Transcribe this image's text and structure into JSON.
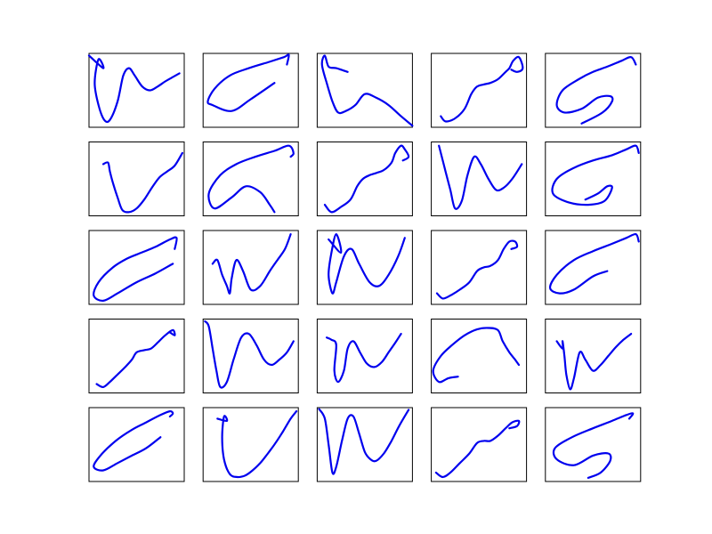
{
  "figure": {
    "background": "#ffffff"
  },
  "chart_data": {
    "type": "line",
    "layout": {
      "rows": 5,
      "cols": 5
    },
    "axes_ticks_visible": false,
    "line_color": "#0000ee",
    "xlim": [
      0,
      1
    ],
    "ylim": [
      0,
      1
    ],
    "panels": [
      {
        "x": [
          0.0,
          0.15,
          0.1,
          0.06,
          0.1,
          0.16,
          0.22,
          0.3,
          0.36,
          0.42,
          0.48,
          0.56,
          0.64,
          0.72,
          0.8,
          0.88,
          0.95
        ],
        "y": [
          0.97,
          0.8,
          0.92,
          0.6,
          0.3,
          0.1,
          0.1,
          0.35,
          0.7,
          0.8,
          0.7,
          0.55,
          0.5,
          0.55,
          0.62,
          0.68,
          0.73
        ]
      },
      {
        "x": [
          0.75,
          0.5,
          0.3,
          0.1,
          0.05,
          0.12,
          0.28,
          0.48,
          0.68,
          0.85,
          0.9,
          0.88
        ],
        "y": [
          0.6,
          0.38,
          0.22,
          0.3,
          0.35,
          0.52,
          0.7,
          0.8,
          0.88,
          0.95,
          0.98,
          0.85
        ]
      },
      {
        "x": [
          0.32,
          0.2,
          0.12,
          0.08,
          0.05,
          0.1,
          0.16,
          0.22,
          0.3,
          0.4,
          0.5,
          0.62,
          0.75,
          0.88,
          1.0
        ],
        "y": [
          0.75,
          0.8,
          0.82,
          0.97,
          0.85,
          0.6,
          0.35,
          0.2,
          0.22,
          0.3,
          0.45,
          0.4,
          0.3,
          0.15,
          0.02
        ]
      },
      {
        "x": [
          0.1,
          0.15,
          0.25,
          0.35,
          0.42,
          0.48,
          0.55,
          0.62,
          0.7,
          0.78,
          0.82,
          0.86,
          0.92,
          0.96,
          0.9,
          0.84
        ],
        "y": [
          0.15,
          0.08,
          0.12,
          0.25,
          0.45,
          0.55,
          0.58,
          0.6,
          0.65,
          0.75,
          0.8,
          0.9,
          0.95,
          0.8,
          0.75,
          0.78
        ]
      },
      {
        "x": [
          0.38,
          0.6,
          0.7,
          0.68,
          0.55,
          0.38,
          0.2,
          0.12,
          0.18,
          0.35,
          0.5,
          0.65,
          0.8,
          0.9,
          0.95
        ],
        "y": [
          0.05,
          0.2,
          0.35,
          0.42,
          0.4,
          0.25,
          0.2,
          0.3,
          0.5,
          0.65,
          0.75,
          0.82,
          0.9,
          0.95,
          0.85
        ]
      },
      {
        "x": [
          0.15,
          0.2,
          0.22,
          0.25,
          0.3,
          0.35,
          0.42,
          0.5,
          0.58,
          0.66,
          0.74,
          0.82,
          0.9,
          0.98
        ],
        "y": [
          0.7,
          0.72,
          0.6,
          0.45,
          0.25,
          0.08,
          0.05,
          0.1,
          0.22,
          0.38,
          0.52,
          0.6,
          0.68,
          0.85
        ]
      },
      {
        "x": [
          0.75,
          0.7,
          0.6,
          0.45,
          0.3,
          0.12,
          0.06,
          0.18,
          0.35,
          0.55,
          0.75,
          0.9,
          0.95,
          0.92
        ],
        "y": [
          0.05,
          0.15,
          0.32,
          0.4,
          0.25,
          0.1,
          0.3,
          0.55,
          0.7,
          0.8,
          0.88,
          0.95,
          0.85,
          0.8
        ]
      },
      {
        "x": [
          0.08,
          0.15,
          0.25,
          0.35,
          0.42,
          0.48,
          0.55,
          0.62,
          0.7,
          0.78,
          0.82,
          0.88,
          0.92,
          0.96,
          0.9
        ],
        "y": [
          0.15,
          0.05,
          0.12,
          0.22,
          0.4,
          0.5,
          0.55,
          0.58,
          0.62,
          0.72,
          0.85,
          0.95,
          0.9,
          0.8,
          0.75
        ]
      },
      {
        "x": [
          0.08,
          0.1,
          0.15,
          0.2,
          0.25,
          0.32,
          0.38,
          0.45,
          0.52,
          0.6,
          0.68,
          0.76,
          0.85,
          0.95
        ],
        "y": [
          0.95,
          0.85,
          0.6,
          0.35,
          0.1,
          0.2,
          0.55,
          0.8,
          0.7,
          0.5,
          0.35,
          0.38,
          0.5,
          0.7
        ]
      },
      {
        "x": [
          0.42,
          0.55,
          0.65,
          0.7,
          0.62,
          0.45,
          0.25,
          0.08,
          0.12,
          0.3,
          0.5,
          0.7,
          0.85,
          0.95,
          0.98
        ],
        "y": [
          0.22,
          0.3,
          0.4,
          0.38,
          0.2,
          0.15,
          0.18,
          0.3,
          0.5,
          0.65,
          0.75,
          0.82,
          0.9,
          0.95,
          0.85
        ]
      },
      {
        "x": [
          0.88,
          0.7,
          0.5,
          0.3,
          0.15,
          0.05,
          0.1,
          0.25,
          0.4,
          0.55,
          0.7,
          0.85,
          0.92,
          0.9
        ],
        "y": [
          0.55,
          0.42,
          0.3,
          0.15,
          0.05,
          0.12,
          0.3,
          0.5,
          0.62,
          0.7,
          0.78,
          0.88,
          0.9,
          0.75
        ]
      },
      {
        "x": [
          0.1,
          0.15,
          0.2,
          0.25,
          0.28,
          0.3,
          0.35,
          0.42,
          0.5,
          0.6,
          0.7,
          0.78,
          0.86,
          0.92
        ],
        "y": [
          0.55,
          0.6,
          0.4,
          0.25,
          0.15,
          0.35,
          0.6,
          0.45,
          0.2,
          0.25,
          0.45,
          0.6,
          0.75,
          0.95
        ]
      },
      {
        "x": [
          0.12,
          0.25,
          0.2,
          0.15,
          0.12,
          0.16,
          0.2,
          0.28,
          0.36,
          0.44,
          0.55,
          0.65,
          0.75,
          0.85,
          0.92
        ],
        "y": [
          0.88,
          0.7,
          0.95,
          0.7,
          0.4,
          0.15,
          0.3,
          0.65,
          0.75,
          0.55,
          0.3,
          0.25,
          0.4,
          0.65,
          0.9
        ]
      },
      {
        "x": [
          0.06,
          0.12,
          0.2,
          0.3,
          0.4,
          0.48,
          0.55,
          0.62,
          0.7,
          0.76,
          0.82,
          0.88,
          0.9,
          0.84
        ],
        "y": [
          0.15,
          0.08,
          0.12,
          0.2,
          0.3,
          0.45,
          0.5,
          0.52,
          0.6,
          0.75,
          0.85,
          0.85,
          0.78,
          0.75
        ]
      },
      {
        "x": [
          0.65,
          0.5,
          0.3,
          0.15,
          0.05,
          0.12,
          0.3,
          0.5,
          0.7,
          0.85,
          0.95,
          0.98
        ],
        "y": [
          0.45,
          0.38,
          0.2,
          0.15,
          0.22,
          0.4,
          0.6,
          0.72,
          0.82,
          0.9,
          0.95,
          0.85
        ]
      },
      {
        "x": [
          0.08,
          0.15,
          0.22,
          0.3,
          0.38,
          0.45,
          0.5,
          0.58,
          0.65,
          0.72,
          0.8,
          0.88,
          0.9,
          0.85
        ],
        "y": [
          0.12,
          0.08,
          0.15,
          0.25,
          0.35,
          0.45,
          0.55,
          0.58,
          0.6,
          0.68,
          0.78,
          0.85,
          0.78,
          0.82
        ]
      },
      {
        "x": [
          0.02,
          0.06,
          0.1,
          0.14,
          0.18,
          0.25,
          0.32,
          0.4,
          0.48,
          0.56,
          0.64,
          0.72,
          0.8,
          0.88,
          0.95
        ],
        "y": [
          0.97,
          0.9,
          0.6,
          0.3,
          0.08,
          0.15,
          0.45,
          0.75,
          0.8,
          0.65,
          0.45,
          0.38,
          0.45,
          0.55,
          0.7
        ]
      },
      {
        "x": [
          0.1,
          0.15,
          0.2,
          0.18,
          0.22,
          0.28,
          0.32,
          0.38,
          0.45,
          0.52,
          0.6,
          0.68,
          0.75,
          0.82,
          0.88
        ],
        "y": [
          0.75,
          0.72,
          0.65,
          0.3,
          0.15,
          0.3,
          0.6,
          0.7,
          0.55,
          0.4,
          0.35,
          0.42,
          0.55,
          0.68,
          0.8
        ]
      },
      {
        "x": [
          0.28,
          0.18,
          0.08,
          0.02,
          0.1,
          0.22,
          0.35,
          0.48,
          0.6,
          0.7,
          0.75,
          0.82,
          0.88,
          0.92
        ],
        "y": [
          0.22,
          0.2,
          0.15,
          0.3,
          0.5,
          0.65,
          0.78,
          0.86,
          0.88,
          0.85,
          0.7,
          0.55,
          0.45,
          0.38
        ]
      },
      {
        "x": [
          0.12,
          0.18,
          0.18,
          0.2,
          0.22,
          0.26,
          0.3,
          0.36,
          0.42,
          0.5,
          0.58,
          0.66,
          0.74,
          0.82,
          0.9
        ],
        "y": [
          0.7,
          0.6,
          0.7,
          0.5,
          0.25,
          0.05,
          0.2,
          0.55,
          0.45,
          0.3,
          0.38,
          0.5,
          0.62,
          0.72,
          0.8
        ]
      },
      {
        "x": [
          0.75,
          0.6,
          0.45,
          0.3,
          0.15,
          0.05,
          0.12,
          0.28,
          0.45,
          0.6,
          0.75,
          0.85,
          0.88,
          0.85
        ],
        "y": [
          0.6,
          0.45,
          0.35,
          0.25,
          0.15,
          0.2,
          0.35,
          0.55,
          0.7,
          0.8,
          0.9,
          0.95,
          0.92,
          0.88
        ]
      },
      {
        "x": [
          0.15,
          0.25,
          0.22,
          0.2,
          0.22,
          0.28,
          0.36,
          0.44,
          0.52,
          0.6,
          0.68,
          0.76,
          0.84,
          0.92,
          0.98
        ],
        "y": [
          0.85,
          0.82,
          0.88,
          0.6,
          0.3,
          0.1,
          0.06,
          0.08,
          0.15,
          0.25,
          0.38,
          0.52,
          0.68,
          0.85,
          0.95
        ]
      },
      {
        "x": [
          0.02,
          0.08,
          0.12,
          0.16,
          0.2,
          0.26,
          0.32,
          0.38,
          0.44,
          0.5,
          0.56,
          0.62,
          0.7,
          0.78,
          0.86,
          0.96
        ],
        "y": [
          0.98,
          0.85,
          0.5,
          0.12,
          0.2,
          0.55,
          0.85,
          0.88,
          0.65,
          0.4,
          0.3,
          0.28,
          0.38,
          0.55,
          0.75,
          0.97
        ]
      },
      {
        "x": [
          0.05,
          0.12,
          0.2,
          0.3,
          0.4,
          0.48,
          0.55,
          0.62,
          0.7,
          0.78,
          0.85,
          0.92,
          0.9,
          0.82
        ],
        "y": [
          0.12,
          0.06,
          0.12,
          0.25,
          0.38,
          0.52,
          0.55,
          0.55,
          0.62,
          0.72,
          0.8,
          0.82,
          0.75,
          0.72
        ]
      },
      {
        "x": [
          0.45,
          0.58,
          0.68,
          0.66,
          0.5,
          0.3,
          0.12,
          0.1,
          0.28,
          0.5,
          0.7,
          0.85,
          0.92,
          0.88
        ],
        "y": [
          0.05,
          0.12,
          0.28,
          0.38,
          0.35,
          0.22,
          0.3,
          0.45,
          0.6,
          0.72,
          0.82,
          0.9,
          0.92,
          0.85
        ]
      }
    ]
  }
}
